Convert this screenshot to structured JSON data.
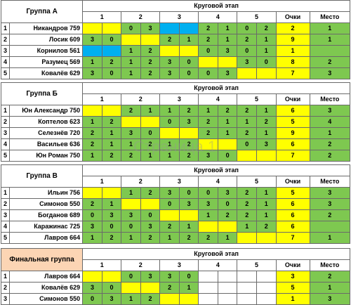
{
  "header": {
    "stage": "Круговой этап",
    "points": "Очки",
    "place": "Место"
  },
  "watermark": "Страница 1",
  "groups": [
    {
      "title": "Группа А",
      "cols": [
        "1",
        "2",
        "3",
        "4",
        "5"
      ],
      "rows": [
        {
          "n": "1",
          "name": "Никандров 759",
          "c": [
            [
              "",
              ""
            ],
            [
              "0",
              "3"
            ],
            [
              "",
              ""
            ],
            [
              "2",
              "1"
            ],
            [
              "0",
              "2"
            ]
          ],
          "pts": "2",
          "place": "1"
        },
        {
          "n": "2",
          "name": "Лосик 609",
          "c": [
            [
              "3",
              "0"
            ],
            [
              "",
              ""
            ],
            [
              "2",
              "1"
            ],
            [
              "2",
              "1"
            ],
            [
              "2",
              "1"
            ]
          ],
          "pts": "9",
          "place": "1"
        },
        {
          "n": "3",
          "name": "Корнилов 561",
          "c": [
            [
              "",
              ""
            ],
            [
              "1",
              "2"
            ],
            [
              "",
              ""
            ],
            [
              "0",
              "3"
            ],
            [
              "0",
              "1"
            ]
          ],
          "pts": "1",
          "place": ""
        },
        {
          "n": "4",
          "name": "Разумец 569",
          "c": [
            [
              "1",
              "2"
            ],
            [
              "1",
              "2"
            ],
            [
              "3",
              "0"
            ],
            [
              "",
              ""
            ],
            [
              "3",
              "0"
            ]
          ],
          "pts": "8",
          "place": "2"
        },
        {
          "n": "5",
          "name": "Ковалёв 629",
          "c": [
            [
              "3",
              "0"
            ],
            [
              "1",
              "2"
            ],
            [
              "3",
              "0"
            ],
            [
              "0",
              "3"
            ],
            [
              "",
              ""
            ]
          ],
          "pts": "7",
          "place": "3"
        }
      ]
    },
    {
      "title": "Группа Б",
      "cols": [
        "1",
        "2",
        "3",
        "4",
        "5"
      ],
      "rows": [
        {
          "n": "1",
          "name": "Юн Александр 750",
          "c": [
            [
              "",
              ""
            ],
            [
              "2",
              "1"
            ],
            [
              "1",
              "2"
            ],
            [
              "1",
              "2"
            ],
            [
              "2",
              "1"
            ]
          ],
          "pts": "6",
          "place": "3"
        },
        {
          "n": "2",
          "name": "Коптелов 623",
          "c": [
            [
              "1",
              "2"
            ],
            [
              "",
              ""
            ],
            [
              "0",
              "3"
            ],
            [
              "2",
              "1"
            ],
            [
              "1",
              "2"
            ]
          ],
          "pts": "5",
          "place": "4"
        },
        {
          "n": "3",
          "name": "Селезнёв 720",
          "c": [
            [
              "2",
              "1"
            ],
            [
              "3",
              "0"
            ],
            [
              "",
              ""
            ],
            [
              "2",
              "1"
            ],
            [
              "2",
              "1"
            ]
          ],
          "pts": "9",
          "place": "1"
        },
        {
          "n": "4",
          "name": "Васильев 636",
          "c": [
            [
              "2",
              "1"
            ],
            [
              "1",
              "2"
            ],
            [
              "1",
              "2"
            ],
            [
              "",
              ""
            ],
            [
              "0",
              "3"
            ]
          ],
          "pts": "6",
          "place": "2"
        },
        {
          "n": "5",
          "name": "Юн Роман 750",
          "c": [
            [
              "1",
              "2"
            ],
            [
              "2",
              "1"
            ],
            [
              "1",
              "2"
            ],
            [
              "3",
              "0"
            ],
            [
              "",
              ""
            ]
          ],
          "pts": "7",
          "place": "2"
        }
      ]
    },
    {
      "title": "Группа В",
      "cols": [
        "1",
        "2",
        "3",
        "4",
        "5"
      ],
      "rows": [
        {
          "n": "1",
          "name": "Ильин 756",
          "c": [
            [
              "",
              ""
            ],
            [
              "1",
              "2"
            ],
            [
              "3",
              "0"
            ],
            [
              "0",
              "3"
            ],
            [
              "2",
              "1"
            ]
          ],
          "pts": "5",
          "place": "3"
        },
        {
          "n": "2",
          "name": "Симонов 550",
          "c": [
            [
              "2",
              "1"
            ],
            [
              "",
              ""
            ],
            [
              "0",
              "3"
            ],
            [
              "3",
              "0"
            ],
            [
              "2",
              "1"
            ]
          ],
          "pts": "6",
          "place": "3"
        },
        {
          "n": "3",
          "name": "Богданов 689",
          "c": [
            [
              "0",
              "3"
            ],
            [
              "3",
              "0"
            ],
            [
              "",
              ""
            ],
            [
              "1",
              "2"
            ],
            [
              "2",
              "1"
            ]
          ],
          "pts": "6",
          "place": "2"
        },
        {
          "n": "4",
          "name": "Каражинас 725",
          "c": [
            [
              "3",
              "0"
            ],
            [
              "0",
              "3"
            ],
            [
              "2",
              "1"
            ],
            [
              "",
              ""
            ],
            [
              "1",
              "2"
            ]
          ],
          "pts": "6",
          "place": ""
        },
        {
          "n": "5",
          "name": "Лавров 664",
          "c": [
            [
              "1",
              "2"
            ],
            [
              "1",
              "2"
            ],
            [
              "1",
              "2"
            ],
            [
              "2",
              "1"
            ],
            [
              "",
              ""
            ]
          ],
          "pts": "7",
          "place": "1"
        }
      ]
    },
    {
      "title": "Финальная группа",
      "cols": [
        "1",
        "2",
        "3",
        "4",
        "5"
      ],
      "rows": [
        {
          "n": "1",
          "name": "Лавров 664",
          "c": [
            [
              "",
              ""
            ],
            [
              "0",
              "3"
            ],
            [
              "3",
              "0"
            ],
            [
              "",
              ""
            ],
            [
              "",
              ""
            ]
          ],
          "pts": "3",
          "place": "2"
        },
        {
          "n": "2",
          "name": "Ковалёв 629",
          "c": [
            [
              "3",
              "0"
            ],
            [
              "",
              ""
            ],
            [
              "2",
              "1"
            ],
            [
              "",
              ""
            ],
            [
              "",
              ""
            ]
          ],
          "pts": "5",
          "place": "1"
        },
        {
          "n": "3",
          "name": "Симонов 550",
          "c": [
            [
              "0",
              "3"
            ],
            [
              "1",
              "2"
            ],
            [
              "",
              ""
            ],
            [
              "",
              ""
            ],
            [
              "",
              ""
            ]
          ],
          "pts": "1",
          "place": "3"
        }
      ]
    }
  ],
  "colors": {
    "win": "#7ec850",
    "loss_or_diag": "#ffff00",
    "special": "#00b0f0",
    "final_header": "#fcd5b4"
  }
}
